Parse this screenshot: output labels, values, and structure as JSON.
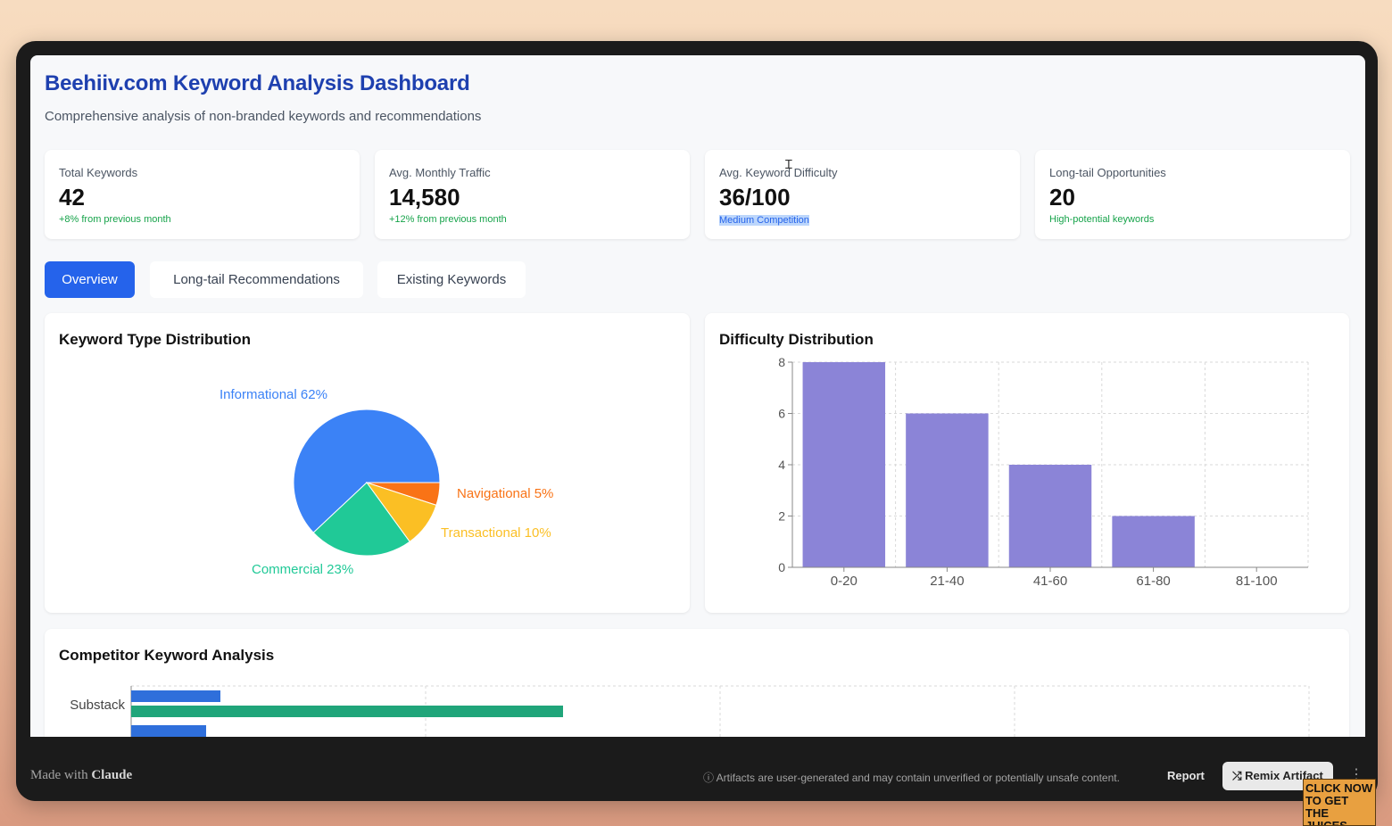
{
  "header": {
    "title": "Beehiiv.com Keyword Analysis Dashboard",
    "subtitle": "Comprehensive analysis of non-branded keywords and recommendations"
  },
  "stats": [
    {
      "label": "Total Keywords",
      "value": "42",
      "note": "+8% from previous month"
    },
    {
      "label": "Avg. Monthly Traffic",
      "value": "14,580",
      "note": "+12% from previous month"
    },
    {
      "label": "Avg. Keyword Difficulty",
      "value": "36/100",
      "note": "Medium Competition"
    },
    {
      "label": "Long-tail Opportunities",
      "value": "20",
      "note": "High-potential keywords"
    }
  ],
  "tabs": [
    {
      "label": "Overview",
      "active": true
    },
    {
      "label": "Long-tail Recommendations",
      "active": false
    },
    {
      "label": "Existing Keywords",
      "active": false
    }
  ],
  "panels": {
    "pie_title": "Keyword Type Distribution",
    "bar_title": "Difficulty Distribution",
    "competitor_title": "Competitor Keyword Analysis"
  },
  "chart_data": [
    {
      "type": "pie",
      "title": "Keyword Type Distribution",
      "slices": [
        {
          "label": "Informational 62%",
          "value": 62,
          "color": "#3b82f6"
        },
        {
          "label": "Navigational 5%",
          "value": 5,
          "color": "#f97316"
        },
        {
          "label": "Transactional 10%",
          "value": 10,
          "color": "#fbbf24"
        },
        {
          "label": "Commercial 23%",
          "value": 23,
          "color": "#20c997"
        }
      ]
    },
    {
      "type": "bar",
      "title": "Difficulty Distribution",
      "categories": [
        "0-20",
        "21-40",
        "41-60",
        "61-80",
        "81-100"
      ],
      "values": [
        8,
        6,
        4,
        2,
        0
      ],
      "yticks": [
        "0",
        "2",
        "4",
        "6",
        "8"
      ],
      "ylim": [
        0,
        8
      ],
      "color": "#8b84d7",
      "grid": true
    },
    {
      "type": "bar",
      "orientation": "horizontal",
      "title": "Competitor Keyword Analysis",
      "categories": [
        "Substack"
      ],
      "series_colors": [
        "#2f6fdb",
        "#20a57a"
      ],
      "note": "partially visible; cut off at bottom"
    }
  ],
  "footer": {
    "made_with": "Made with",
    "brand": "Claude",
    "disclaimer": "ⓘ Artifacts are user-generated and may contain unverified or potentially unsafe content.",
    "report": "Report",
    "remix": "⤮ Remix Artifact",
    "more": "⋮"
  },
  "promo": {
    "text": "CLICK NOW TO GET THE JUICES"
  }
}
